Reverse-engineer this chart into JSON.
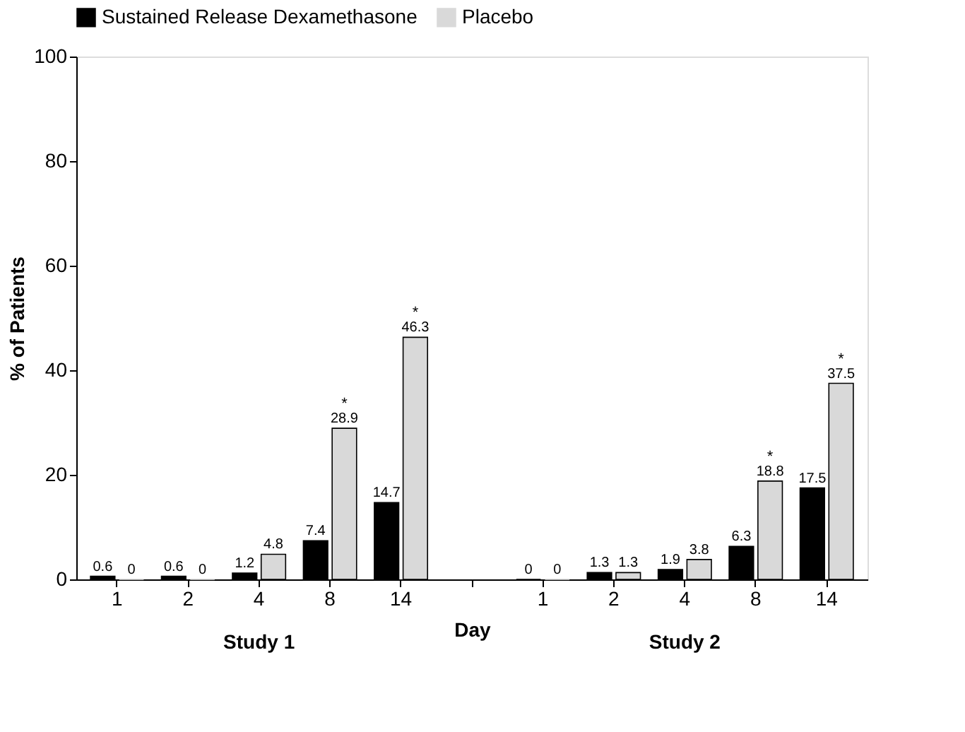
{
  "chart_data": {
    "type": "bar",
    "ylabel": "% of Patients",
    "xlabel": "Day",
    "categories": [
      "1",
      "2",
      "4",
      "8",
      "14",
      null,
      "1",
      "2",
      "4",
      "8",
      "14"
    ],
    "series": [
      {
        "name": "Sustained Release Dexamethasone",
        "color": "#000000",
        "values": [
          0.6,
          0.6,
          1.2,
          7.4,
          14.7,
          null,
          0,
          1.3,
          1.9,
          6.3,
          17.5
        ]
      },
      {
        "name": "Placebo",
        "color": "#d9d9d9",
        "values": [
          0,
          0,
          4.8,
          28.9,
          46.3,
          null,
          0,
          1.3,
          3.8,
          18.8,
          37.5
        ]
      }
    ],
    "ylim": [
      0,
      100
    ],
    "yticks": [
      0,
      20,
      40,
      60,
      80,
      100
    ],
    "grid": false,
    "legend": "top",
    "data_labels": true,
    "annotations": [
      "Study 1",
      "Study 2",
      {
        "text": "*",
        "y": 28.9
      },
      {
        "text": "*",
        "y": 46.3
      },
      {
        "text": "*",
        "y": 18.8
      },
      {
        "text": "*",
        "y": 37.5
      }
    ]
  }
}
